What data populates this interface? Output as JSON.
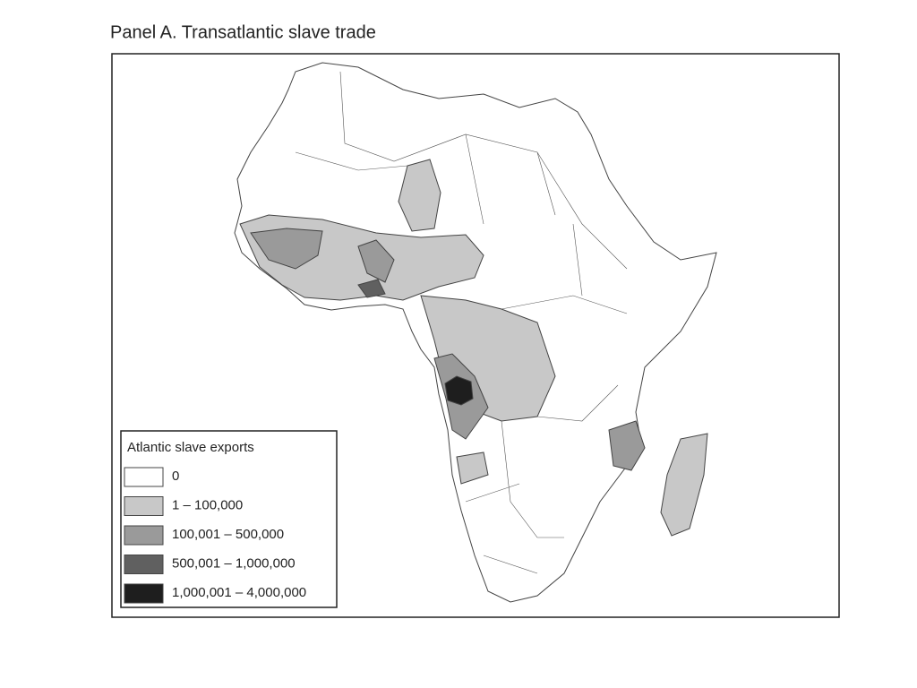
{
  "title": "Panel A. Transatlantic slave trade",
  "legend": {
    "title": "Atlantic slave exports",
    "items": [
      {
        "label": "0",
        "color": "#ffffff"
      },
      {
        "label": "1 – 100,000",
        "color": "#c8c8c8"
      },
      {
        "label": "100,001 – 500,000",
        "color": "#9a9a9a"
      },
      {
        "label": "500,001 – 1,000,000",
        "color": "#606060"
      },
      {
        "label": "1,000,001 – 4,000,000",
        "color": "#1e1e1e"
      }
    ]
  }
}
